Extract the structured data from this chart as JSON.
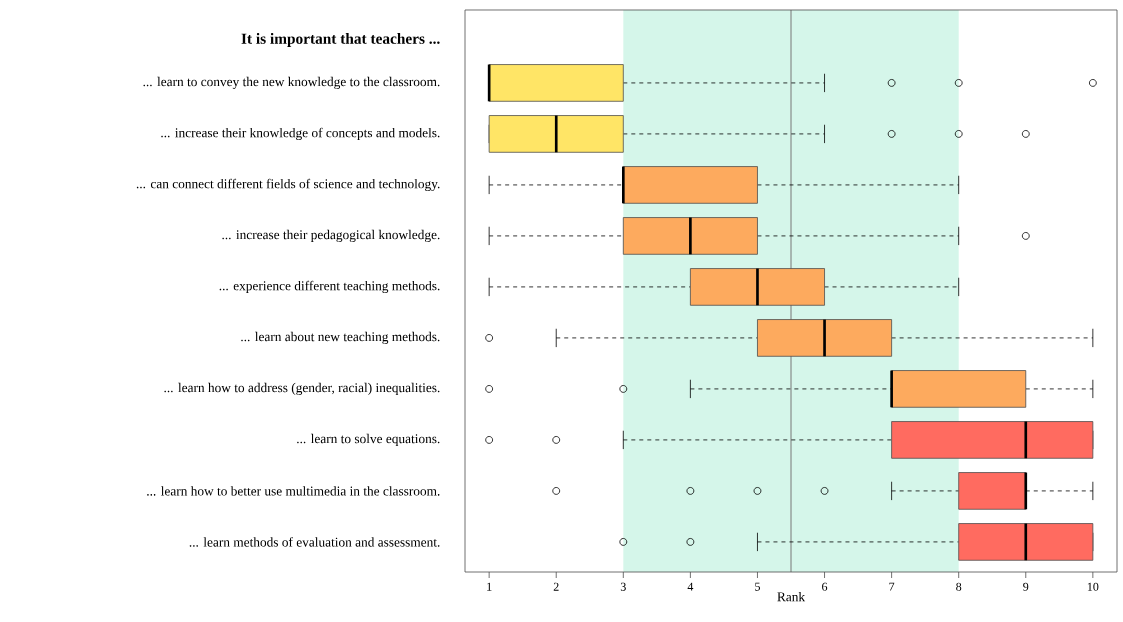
{
  "chart_data": {
    "type": "box",
    "orientation": "horizontal",
    "title": "It is important that teachers ...",
    "xlabel": "Rank",
    "categories": [
      "... learn to convey the new knowledge to the classroom.",
      "... increase their knowledge of concepts and models.",
      "... can connect different fields of science and technology.",
      "... increase their pedagogical knowledge.",
      "... experience different teaching methods.",
      "... learn about new teaching methods.",
      "... learn how to address (gender, racial) inequalities.",
      "... learn to solve equations.",
      "... learn how to better use multimedia in the classroom.",
      "... learn methods of evaluation and assessment."
    ],
    "boxes": [
      {
        "low": 1,
        "q1": 1,
        "median": 1,
        "q3": 3,
        "high": 6,
        "outliers": [
          7,
          8,
          10
        ]
      },
      {
        "low": 1,
        "q1": 1,
        "median": 2,
        "q3": 3,
        "high": 6,
        "outliers": [
          7,
          8,
          9
        ]
      },
      {
        "low": 1,
        "q1": 3,
        "median": 3,
        "q3": 5,
        "high": 8
      },
      {
        "low": 1,
        "q1": 3,
        "median": 4,
        "q3": 5,
        "high": 8,
        "outliers": [
          9
        ]
      },
      {
        "low": 1,
        "q1": 4,
        "median": 5,
        "q3": 6,
        "high": 8
      },
      {
        "low": 2,
        "q1": 5,
        "median": 6,
        "q3": 7,
        "high": 10,
        "outliers": [
          1
        ]
      },
      {
        "low": 4,
        "q1": 7,
        "median": 7,
        "q3": 9,
        "high": 10,
        "outliers": [
          1,
          3
        ]
      },
      {
        "low": 3,
        "q1": 7,
        "median": 9,
        "q3": 10,
        "high": 10,
        "outliers": [
          1,
          2
        ]
      },
      {
        "low": 7,
        "q1": 8,
        "median": 9,
        "q3": 9,
        "high": 10,
        "outliers": [
          2,
          4,
          5,
          6
        ]
      },
      {
        "low": 5,
        "q1": 8,
        "median": 9,
        "q3": 10,
        "high": 10,
        "outliers": [
          3,
          4
        ]
      }
    ],
    "colors": [
      "#ffe566",
      "#ffe566",
      "#fdaa5e",
      "#fdaa5e",
      "#fdaa5e",
      "#fdaa5e",
      "#fdaa5e",
      "#ff6b60",
      "#ff6b60",
      "#ff6b60"
    ],
    "xlim": [
      0.64,
      10.36
    ],
    "xticks": [
      1,
      2,
      3,
      4,
      5,
      6,
      7,
      8,
      9,
      10
    ],
    "ref_lines": [
      {
        "axis": "x",
        "value": 5.5,
        "color": "#7f7f7f"
      }
    ],
    "bands": [
      {
        "axis": "x",
        "from": 3,
        "to": 8,
        "color": "#d5f6ea"
      }
    ]
  }
}
